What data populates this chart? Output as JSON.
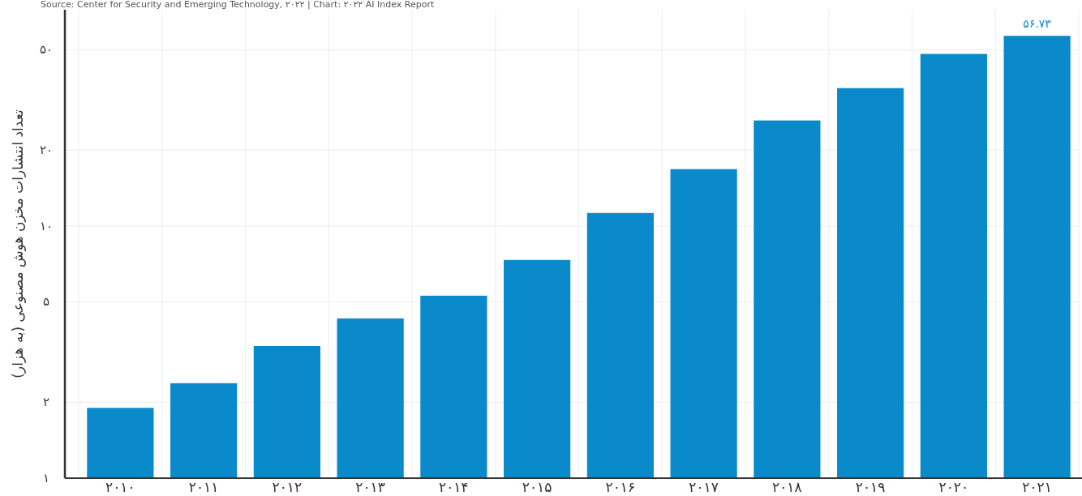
{
  "chart_data": {
    "type": "bar",
    "ylabel": "تعداد انتشارات مخزن هوش مصنوعی (به هزار)",
    "annotations": [
      "Source: Center for Security and Emerging Technology, ۲۰۲۲ | Chart: ۲۰۲۲ AI Index Report"
    ],
    "categories": [
      "۲۰۱۰",
      "۲۰۱۱",
      "۲۰۱۲",
      "۲۰۱۳",
      "۲۰۱۴",
      "۲۰۱۵",
      "۲۰۱۶",
      "۲۰۱۷",
      "۲۰۱۸",
      "۲۰۱۹",
      "۲۰۲۰",
      "۲۰۲۱"
    ],
    "values": [
      1.9,
      2.38,
      3.34,
      4.3,
      5.29,
      7.33,
      11.26,
      16.8,
      26.2,
      35.2,
      48.1,
      56.73
    ],
    "value_labels": [
      null,
      null,
      null,
      null,
      null,
      null,
      null,
      null,
      null,
      null,
      null,
      "۵۶.۷۳"
    ],
    "color": "#0a8acb",
    "log": "y",
    "ylim": [
      1,
      72
    ],
    "yticks": [
      {
        "value": 1,
        "label": "۱"
      },
      {
        "value": 2,
        "label": "۲"
      },
      {
        "value": 5,
        "label": "۵"
      },
      {
        "value": 10,
        "label": "۱۰"
      },
      {
        "value": 20,
        "label": "۲۰"
      },
      {
        "value": 50,
        "label": "۵۰"
      }
    ],
    "grid": true
  }
}
